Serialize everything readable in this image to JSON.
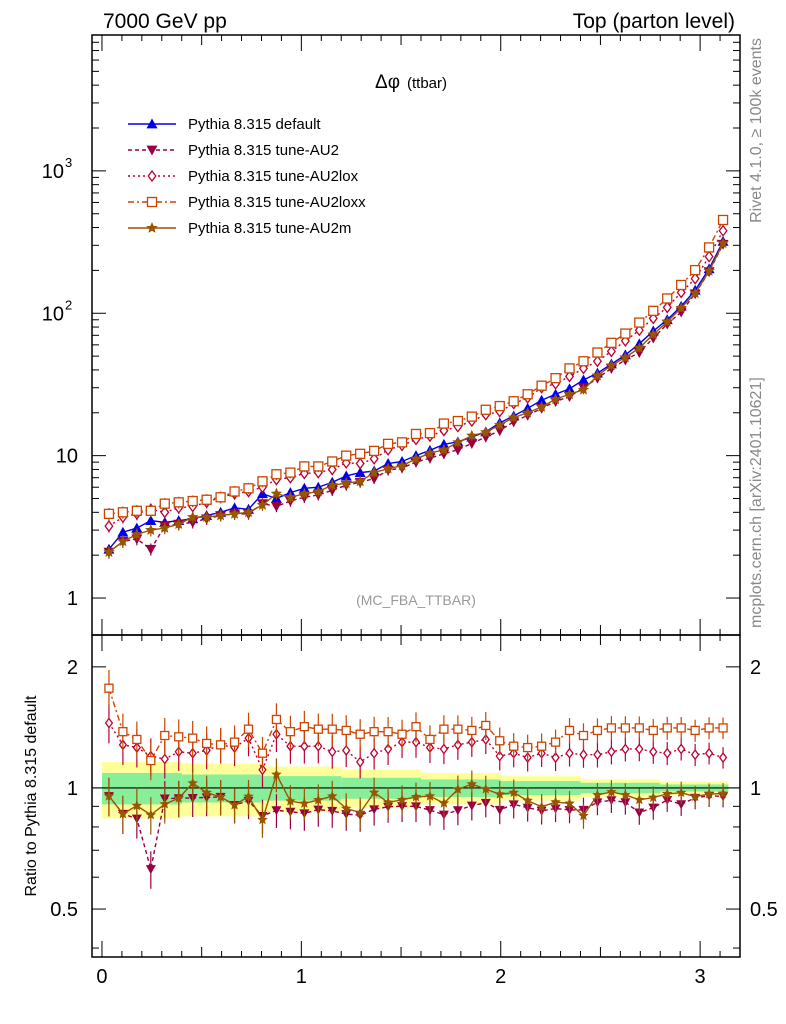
{
  "header": {
    "left": "7000 GeV pp",
    "right": "Top (parton level)"
  },
  "side_labels": {
    "rivet": "Rivet 4.1.0, ≥ 100k events",
    "mcplots": "mcplots.cern.ch [arXiv:2401.10621]"
  },
  "plot": {
    "title_symbol": "Δφ",
    "title_sub": "(ttbar)",
    "analysis_tag": "(MC_FBA_TTBAR)",
    "ratio_ylabel": "Ratio to Pythia 8.315 default"
  },
  "axes": {
    "main_yticks": [
      {
        "value": 1,
        "label": "1"
      },
      {
        "value": 10,
        "label": "10"
      },
      {
        "value": 100,
        "label": "10",
        "sup": "2"
      },
      {
        "value": 1000,
        "label": "10",
        "sup": "3"
      }
    ],
    "ratio_yticks": [
      {
        "value": 0.5,
        "label": "0.5"
      },
      {
        "value": 1,
        "label": "1"
      },
      {
        "value": 2,
        "label": "2"
      }
    ],
    "xticks": [
      {
        "value": 0,
        "label": "0"
      },
      {
        "value": 1,
        "label": "1"
      },
      {
        "value": 2,
        "label": "2"
      },
      {
        "value": 3,
        "label": "3"
      }
    ]
  },
  "colors": {
    "default": "#0000ee",
    "au2": "#990044",
    "au2lox": "#bb0033",
    "au2loxx": "#cc4400",
    "au2m": "#995500",
    "band_yellow": "#ffff99",
    "band_green": "#88ee99"
  },
  "chart_data": {
    "type": "line",
    "title": "Δφ (ttbar)",
    "xlim": [
      -0.05,
      3.2
    ],
    "ylim_main": [
      0.55,
      9000
    ],
    "yscale_main": "log",
    "ylim_ratio": [
      0.38,
      2.4
    ],
    "yscale_ratio": "log",
    "x": [
      0.035,
      0.105,
      0.175,
      0.245,
      0.315,
      0.385,
      0.455,
      0.525,
      0.595,
      0.665,
      0.735,
      0.805,
      0.875,
      0.945,
      1.015,
      1.085,
      1.155,
      1.225,
      1.295,
      1.365,
      1.435,
      1.505,
      1.575,
      1.645,
      1.715,
      1.785,
      1.855,
      1.925,
      1.995,
      2.065,
      2.135,
      2.205,
      2.275,
      2.345,
      2.415,
      2.485,
      2.555,
      2.625,
      2.695,
      2.765,
      2.835,
      2.905,
      2.975,
      3.045,
      3.115
    ],
    "series": [
      {
        "key": "default",
        "name": "Pythia 8.315 default",
        "marker": "triangle-up",
        "dash": "",
        "values": [
          2.2,
          2.9,
          3.1,
          3.5,
          3.4,
          3.5,
          3.6,
          3.8,
          4.0,
          4.3,
          4.2,
          5.4,
          5.0,
          5.5,
          5.9,
          6.0,
          6.5,
          7.2,
          7.6,
          7.8,
          8.8,
          9.1,
          10.0,
          10.9,
          12.0,
          12.5,
          13.5,
          14.7,
          17.0,
          19.0,
          21.5,
          24.5,
          27.0,
          29.5,
          34.0,
          38.0,
          44.0,
          51.0,
          61.0,
          75.0,
          90.0,
          112,
          145,
          205,
          320
        ]
      },
      {
        "key": "au2",
        "name": "Pythia 8.315 tune-AU2",
        "marker": "triangle-down",
        "dash": "4,3",
        "values": [
          2.1,
          2.5,
          2.6,
          2.2,
          3.2,
          3.3,
          3.4,
          3.6,
          3.8,
          3.9,
          3.9,
          4.6,
          4.4,
          4.8,
          5.1,
          5.3,
          5.7,
          6.2,
          6.5,
          6.9,
          7.9,
          8.2,
          9.0,
          9.6,
          10.3,
          11.0,
          12.2,
          13.5,
          15.0,
          17.3,
          19.2,
          21.5,
          24.0,
          26.0,
          30.0,
          35.0,
          41.0,
          47.0,
          53.0,
          67.0,
          84.0,
          102,
          137,
          196,
          305
        ]
      },
      {
        "key": "au2lox",
        "name": "Pythia 8.315 tune-AU2lox",
        "marker": "diamond-open",
        "dash": "2,3",
        "values": [
          3.2,
          3.7,
          3.9,
          4.2,
          4.0,
          4.3,
          4.4,
          4.7,
          5.1,
          5.4,
          5.6,
          6.0,
          6.8,
          7.0,
          7.5,
          7.6,
          8.0,
          8.9,
          8.8,
          9.5,
          11.0,
          11.8,
          13.0,
          13.7,
          15.0,
          16.0,
          17.5,
          19.4,
          20.4,
          23.2,
          25.5,
          30.0,
          32.0,
          36.0,
          41.0,
          46.0,
          54.0,
          64.0,
          76.0,
          92.0,
          110,
          140,
          175,
          250,
          380
        ]
      },
      {
        "key": "au2loxx",
        "name": "Pythia 8.315 tune-AU2loxx",
        "marker": "square-open",
        "dash": "6,3,2,3",
        "values": [
          3.9,
          4.0,
          4.1,
          4.1,
          4.6,
          4.7,
          4.8,
          4.9,
          5.1,
          5.6,
          5.9,
          6.6,
          7.4,
          7.6,
          8.4,
          8.4,
          9.1,
          10.0,
          10.3,
          10.8,
          12.1,
          12.4,
          14.2,
          14.4,
          16.8,
          17.5,
          18.8,
          21.0,
          22.3,
          24.1,
          27.0,
          31.0,
          35.0,
          41.0,
          46.0,
          53.0,
          62.0,
          72.0,
          86.0,
          104,
          127,
          158,
          201,
          290,
          452
        ]
      },
      {
        "key": "au2m",
        "name": "Pythia 8.315 tune-AU2m",
        "marker": "star",
        "dash": "",
        "values": [
          2.1,
          2.5,
          2.8,
          3.0,
          3.1,
          3.3,
          3.7,
          3.7,
          3.8,
          3.9,
          4.0,
          4.5,
          5.4,
          5.1,
          5.4,
          5.6,
          6.2,
          6.4,
          6.6,
          7.6,
          8.1,
          8.5,
          9.5,
          10.4,
          11.0,
          12.4,
          13.8,
          14.6,
          16.4,
          18.5,
          20.0,
          22.0,
          24.9,
          27.0,
          29.0,
          36.5,
          43.0,
          49.0,
          57.0,
          71.0,
          87.0,
          109,
          138,
          198,
          310
        ]
      }
    ],
    "ratios": {
      "au2lox": [
        1.45,
        1.28,
        1.26,
        1.2,
        1.18,
        1.23,
        1.22,
        1.24,
        1.28,
        1.26,
        1.33,
        1.11,
        1.36,
        1.27,
        1.27,
        1.27,
        1.23,
        1.24,
        1.16,
        1.22,
        1.25,
        1.3,
        1.3,
        1.26,
        1.25,
        1.28,
        1.3,
        1.32,
        1.2,
        1.22,
        1.19,
        1.22,
        1.19,
        1.22,
        1.21,
        1.21,
        1.23,
        1.25,
        1.25,
        1.23,
        1.22,
        1.25,
        1.21,
        1.22,
        1.19
      ],
      "au2loxx": [
        1.77,
        1.38,
        1.32,
        1.17,
        1.35,
        1.34,
        1.33,
        1.29,
        1.28,
        1.3,
        1.4,
        1.22,
        1.48,
        1.38,
        1.42,
        1.4,
        1.4,
        1.39,
        1.36,
        1.38,
        1.38,
        1.36,
        1.42,
        1.32,
        1.4,
        1.4,
        1.39,
        1.43,
        1.31,
        1.27,
        1.26,
        1.27,
        1.3,
        1.39,
        1.35,
        1.39,
        1.41,
        1.41,
        1.41,
        1.39,
        1.41,
        1.41,
        1.39,
        1.41,
        1.41
      ]
    },
    "ratio_band": {
      "x_edges": [
        0.0,
        0.4,
        0.8,
        1.2,
        1.6,
        2.0,
        2.4,
        2.8,
        3.1416
      ],
      "yellow_half": [
        0.16,
        0.15,
        0.13,
        0.11,
        0.09,
        0.07,
        0.05,
        0.04
      ],
      "green_half": [
        0.09,
        0.08,
        0.07,
        0.06,
        0.05,
        0.04,
        0.03,
        0.02
      ]
    },
    "legend": [
      "Pythia 8.315 default",
      "Pythia 8.315 tune-AU2",
      "Pythia 8.315 tune-AU2lox",
      "Pythia 8.315 tune-AU2loxx",
      "Pythia 8.315 tune-AU2m"
    ],
    "legend_position": "top-left",
    "ratio_ylabel": "Ratio to Pythia 8.315 default"
  }
}
